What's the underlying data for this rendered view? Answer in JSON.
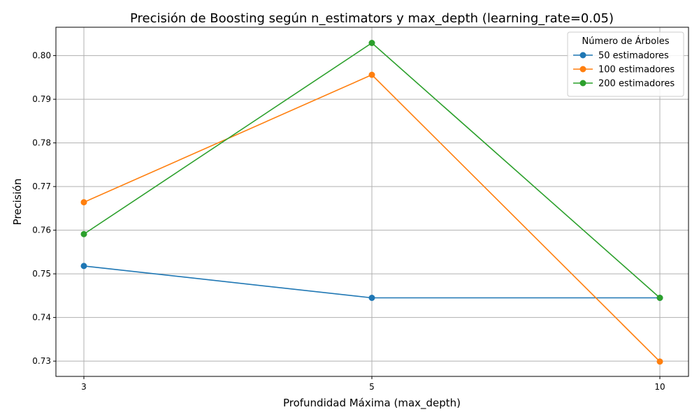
{
  "chart_data": {
    "type": "line",
    "title": "Precisión de Boosting según n_estimators y max_depth (learning_rate=0.05)",
    "xlabel": "Profundidad Máxima (max_depth)",
    "ylabel": "Precisión",
    "categories": [
      "3",
      "5",
      "10"
    ],
    "ylim": [
      0.7265,
      0.8065
    ],
    "yticks": [
      "0.73",
      "0.74",
      "0.75",
      "0.76",
      "0.77",
      "0.78",
      "0.79",
      "0.80"
    ],
    "grid": true,
    "legend": {
      "title": "Número de Árboles",
      "position": "top-right"
    },
    "series": [
      {
        "name": "50 estimadores",
        "color": "#1f77b4",
        "values": [
          0.7518,
          0.7445,
          0.7445
        ]
      },
      {
        "name": "100 estimadores",
        "color": "#ff7f0e",
        "values": [
          0.7664,
          0.7956,
          0.7299
        ]
      },
      {
        "name": "200 estimadores",
        "color": "#2ca02c",
        "values": [
          0.7591,
          0.8029,
          0.7445
        ]
      }
    ]
  }
}
